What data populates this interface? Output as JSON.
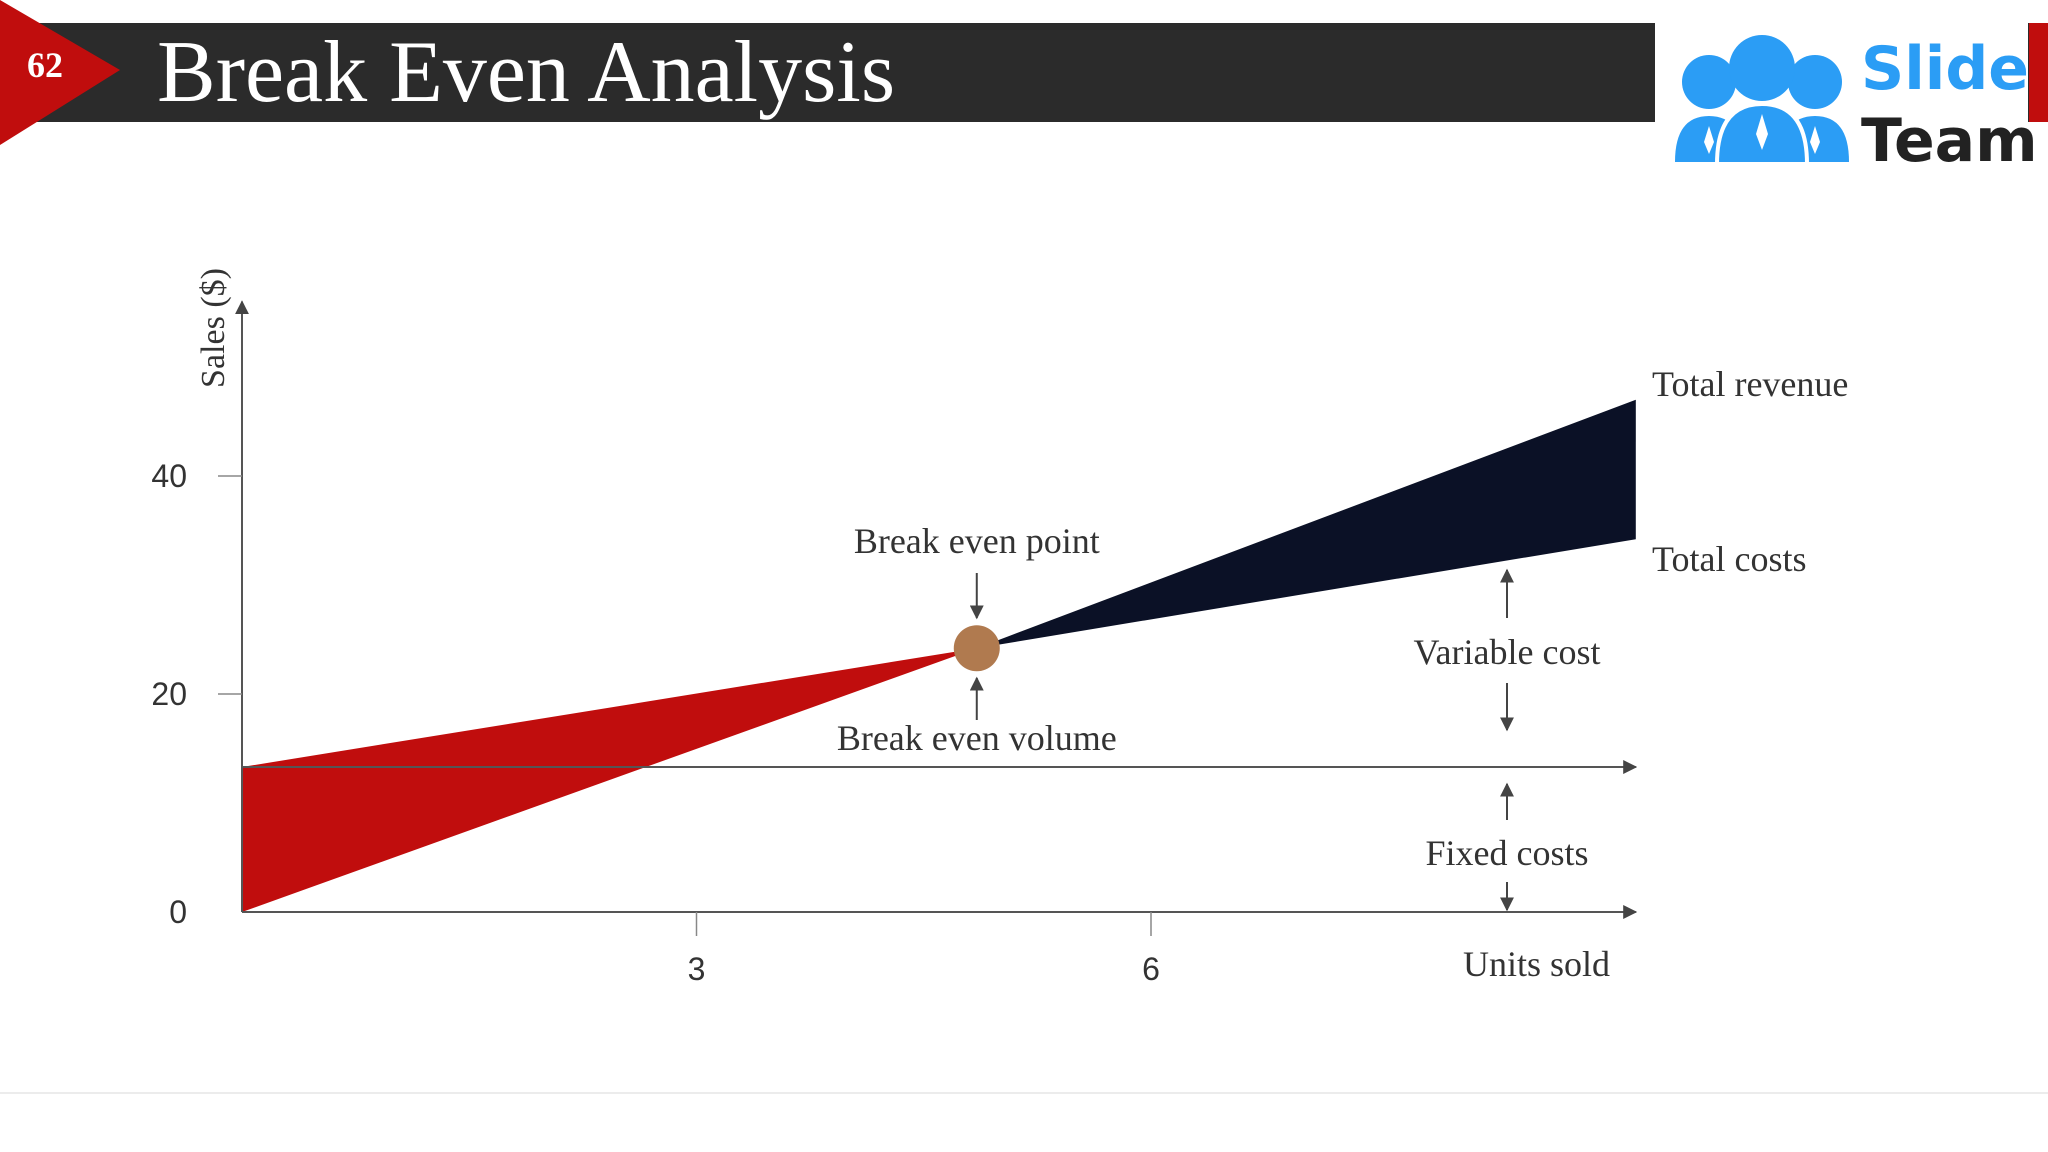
{
  "slide": {
    "number": "62",
    "title": "Break Even Analysis"
  },
  "logo": {
    "word1": "Slide",
    "word2": "Team"
  },
  "colors": {
    "header_bg": "#2b2b2b",
    "accent_red": "#c00d0d",
    "profit_fill": "#0b1126",
    "point_fill": "#b07a4f",
    "logo_blue": "#2b9df5",
    "axis": "#555555"
  },
  "chart_data": {
    "type": "area",
    "ylabel": "Sales ($)",
    "xlabel": "Units sold",
    "xlim": [
      0,
      9.2
    ],
    "ylim": [
      0,
      56
    ],
    "x_ticks": [
      3,
      6
    ],
    "y_ticks": [
      0,
      20,
      40
    ],
    "fixed_cost": 13.3,
    "break_even": {
      "x": 4.85,
      "y": 24.2
    },
    "total_revenue": {
      "x": [
        0,
        9.2
      ],
      "y": [
        0,
        47
      ]
    },
    "total_costs": {
      "x": [
        0,
        9.2
      ],
      "y": [
        13.3,
        34.2
      ]
    },
    "labels": {
      "total_revenue": "Total revenue",
      "total_costs": "Total costs",
      "break_even_point": "Break even point",
      "break_even_volume": "Break even volume",
      "variable_cost": "Variable cost",
      "fixed_costs": "Fixed costs"
    },
    "grid": false
  }
}
